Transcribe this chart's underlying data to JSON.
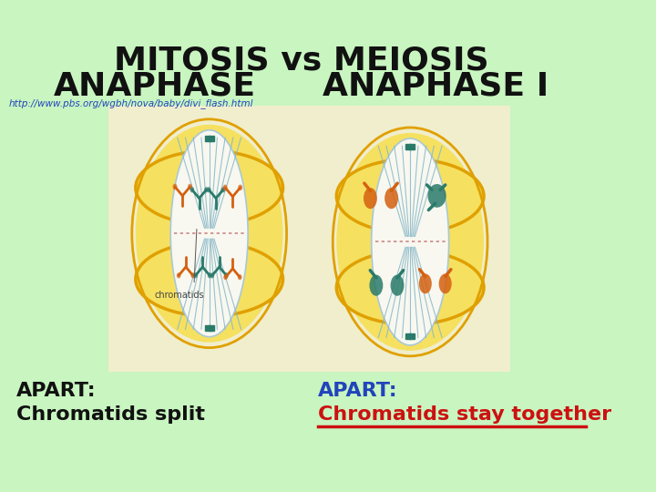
{
  "bg_color": "#c8f5c0",
  "title_line1": "MITOSIS vs MEIOSIS",
  "title_line2_left": "ANAPHASE",
  "title_line2_right": "ANAPHASE I",
  "title_fontsize": 26,
  "title_color": "#111111",
  "url_text": "http://www.pbs.org/wgbh/nova/baby/divi_flash.html",
  "url_color": "#2244bb",
  "url_fontsize": 7.5,
  "panel_color": "#f0eecc",
  "left_apart_text": "APART:",
  "left_apart_color": "#111111",
  "left_body_text": "Chromatids split",
  "left_body_color": "#111111",
  "right_apart_text": "APART:",
  "right_apart_color": "#2244bb",
  "right_body_text": "Chromatids stay together",
  "right_body_color": "#cc1111",
  "text_fontsize": 16,
  "line_color": "#cc1111",
  "orange": "#d46010",
  "teal": "#2a7a6a",
  "yellow_cell": "#f5e060",
  "yellow_outline": "#e0a000",
  "spindle_color": "#88b8c8",
  "inner_cell_color": "#f8f8f0"
}
